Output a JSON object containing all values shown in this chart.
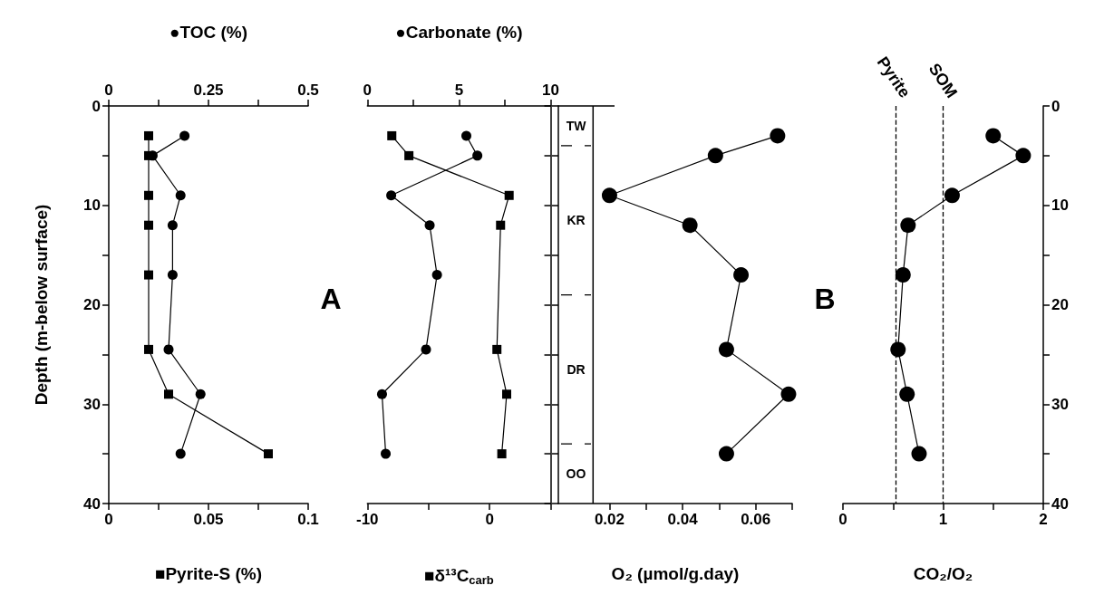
{
  "chart_data": [
    {
      "type": "line",
      "orientation": "horizontal",
      "x": [
        3,
        5,
        9,
        12,
        17,
        24.5,
        29,
        35
      ],
      "ylim": [
        40,
        0
      ],
      "yticks": [
        0,
        {
          "value": 5,
          "label": null
        },
        10,
        {
          "value": 15,
          "label": null
        },
        20,
        {
          "value": 25,
          "label": null
        },
        30,
        {
          "value": 35,
          "label": null
        },
        40
      ],
      "ylabel": "Depth (m-below surface)",
      "xlim": [
        0,
        0.1
      ],
      "xticks": [
        0,
        {
          "value": 0.025,
          "label": null
        },
        0.05,
        {
          "value": 0.075,
          "label": null
        },
        0.1
      ],
      "xlabel": "■Pyrite-S (%)",
      "x2lim": [
        0,
        0.5
      ],
      "x2ticks": [
        0,
        {
          "value": 0.125,
          "label": null
        },
        0.25,
        {
          "value": 0.375,
          "label": null
        },
        0.5
      ],
      "x2label": "●TOC (%)",
      "annotations": [
        "A"
      ],
      "series": [
        {
          "axis": "x2",
          "marker": "circle",
          "color": "#000000",
          "values": [
            0.19,
            0.11,
            0.18,
            0.16,
            0.16,
            0.15,
            0.23,
            0.18
          ]
        },
        {
          "marker": "square",
          "color": "#000000",
          "values": [
            0.02,
            0.02,
            0.02,
            0.02,
            0.02,
            0.02,
            0.03,
            0.08
          ]
        }
      ]
    },
    {
      "type": "line",
      "orientation": "horizontal",
      "x": [
        3,
        5,
        9,
        12,
        17,
        24.5,
        29,
        35
      ],
      "ylim": [
        40,
        0
      ],
      "yticks": [
        0,
        {
          "value": 5,
          "label": null
        },
        10,
        {
          "value": 15,
          "label": null
        },
        20,
        {
          "value": 25,
          "label": null
        },
        30,
        {
          "value": 35,
          "label": null
        },
        40
      ],
      "tick_labels": "x",
      "xlim": [
        -10,
        5
      ],
      "xticks": [
        -10,
        {
          "value": -5,
          "label": null
        },
        0,
        {
          "value": 5,
          "label": null
        }
      ],
      "xlabel": "■δ¹³C$_{carb}$",
      "x2lim": [
        0,
        10
      ],
      "x2ticks": [
        0,
        {
          "value": 2.5,
          "label": null
        },
        5,
        {
          "value": 7.5,
          "label": null
        },
        10
      ],
      "x2label": "●Carbonate (%)",
      "series": [
        {
          "axis": "x2",
          "marker": "circle",
          "color": "#000000",
          "values": [
            5.4,
            6.0,
            1.3,
            3.4,
            3.8,
            3.2,
            0.8,
            1.0
          ]
        },
        {
          "marker": "square",
          "color": "#000000",
          "x": [
            3,
            5,
            9,
            12,
            24.5,
            29,
            35
          ],
          "values": [
            -8.0,
            -6.6,
            1.6,
            0.9,
            0.6,
            1.4,
            1.0
          ]
        }
      ]
    },
    {
      "type": "line",
      "orientation": "horizontal",
      "x": [
        3,
        5,
        9,
        12,
        17,
        24.5,
        29,
        35
      ],
      "ylim": [
        40,
        0
      ],
      "yticks": [
        0,
        {
          "value": 5,
          "label": null
        },
        10,
        {
          "value": 15,
          "label": null
        },
        20,
        {
          "value": 25,
          "label": null
        },
        30,
        {
          "value": 35,
          "label": null
        },
        40
      ],
      "tick_labels": "x",
      "ref_lines": [
        {
          "axis": "x",
          "value": 0.0155,
          "line_style": "solid"
        },
        {
          "axis": "y",
          "value": 4,
          "line_style": "dashed"
        },
        {
          "axis": "y",
          "value": 19,
          "line_style": "dashed"
        },
        {
          "axis": "y",
          "value": 34,
          "line_style": "dashed"
        }
      ],
      "xlim": [
        0.006,
        0.07
      ],
      "xticks": [
        0.02,
        {
          "value": 0.03,
          "label": null
        },
        0.04,
        {
          "value": 0.05,
          "label": null
        },
        0.06,
        {
          "value": 0.07,
          "label": null
        }
      ],
      "xlabel": "O₂ (µmol/g.day)",
      "marker": "circle",
      "annotations": [
        "B",
        "TW",
        "KR",
        "DR",
        "OO"
      ],
      "series": [
        {
          "color": "#000000",
          "values": [
            0.066,
            0.049,
            0.02,
            0.042,
            0.056,
            0.052,
            0.069,
            0.052
          ]
        }
      ]
    },
    {
      "type": "line",
      "orientation": "horizontal",
      "x": [
        3,
        5,
        9,
        12,
        17,
        24.5,
        29,
        35
      ],
      "ylim": [
        40,
        0
      ],
      "yticks": [
        0,
        {
          "value": 5,
          "label": null
        },
        10,
        {
          "value": 15,
          "label": null
        },
        20,
        {
          "value": 25,
          "label": null
        },
        30,
        {
          "value": 35,
          "label": null
        },
        40
      ],
      "xlim": [
        0,
        2
      ],
      "xticks": [
        0,
        {
          "value": 0.5,
          "label": null
        },
        1,
        {
          "value": 1.5,
          "label": null
        },
        2
      ],
      "xlabel": "CO₂/O₂",
      "marker": "circle",
      "ref_lines": [
        {
          "axis": "x",
          "value": 0.53,
          "label": "Pyrite",
          "line_style": "dashed"
        },
        {
          "axis": "x",
          "value": 1.0,
          "label": "SOM",
          "line_style": "dashed"
        }
      ],
      "series": [
        {
          "color": "#000000",
          "values": [
            1.5,
            1.8,
            1.09,
            0.65,
            0.6,
            0.55,
            0.64,
            0.76
          ]
        }
      ]
    }
  ]
}
